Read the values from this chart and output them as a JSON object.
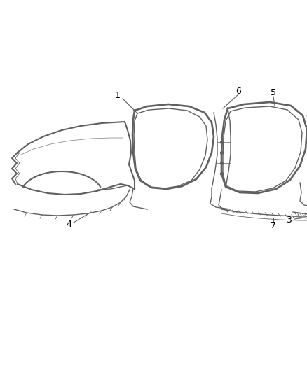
{
  "background_color": "#ffffff",
  "line_color": "#606060",
  "label_color": "#000000",
  "fig_width": 4.38,
  "fig_height": 5.33,
  "dpi": 100,
  "label_fontsize": 9
}
